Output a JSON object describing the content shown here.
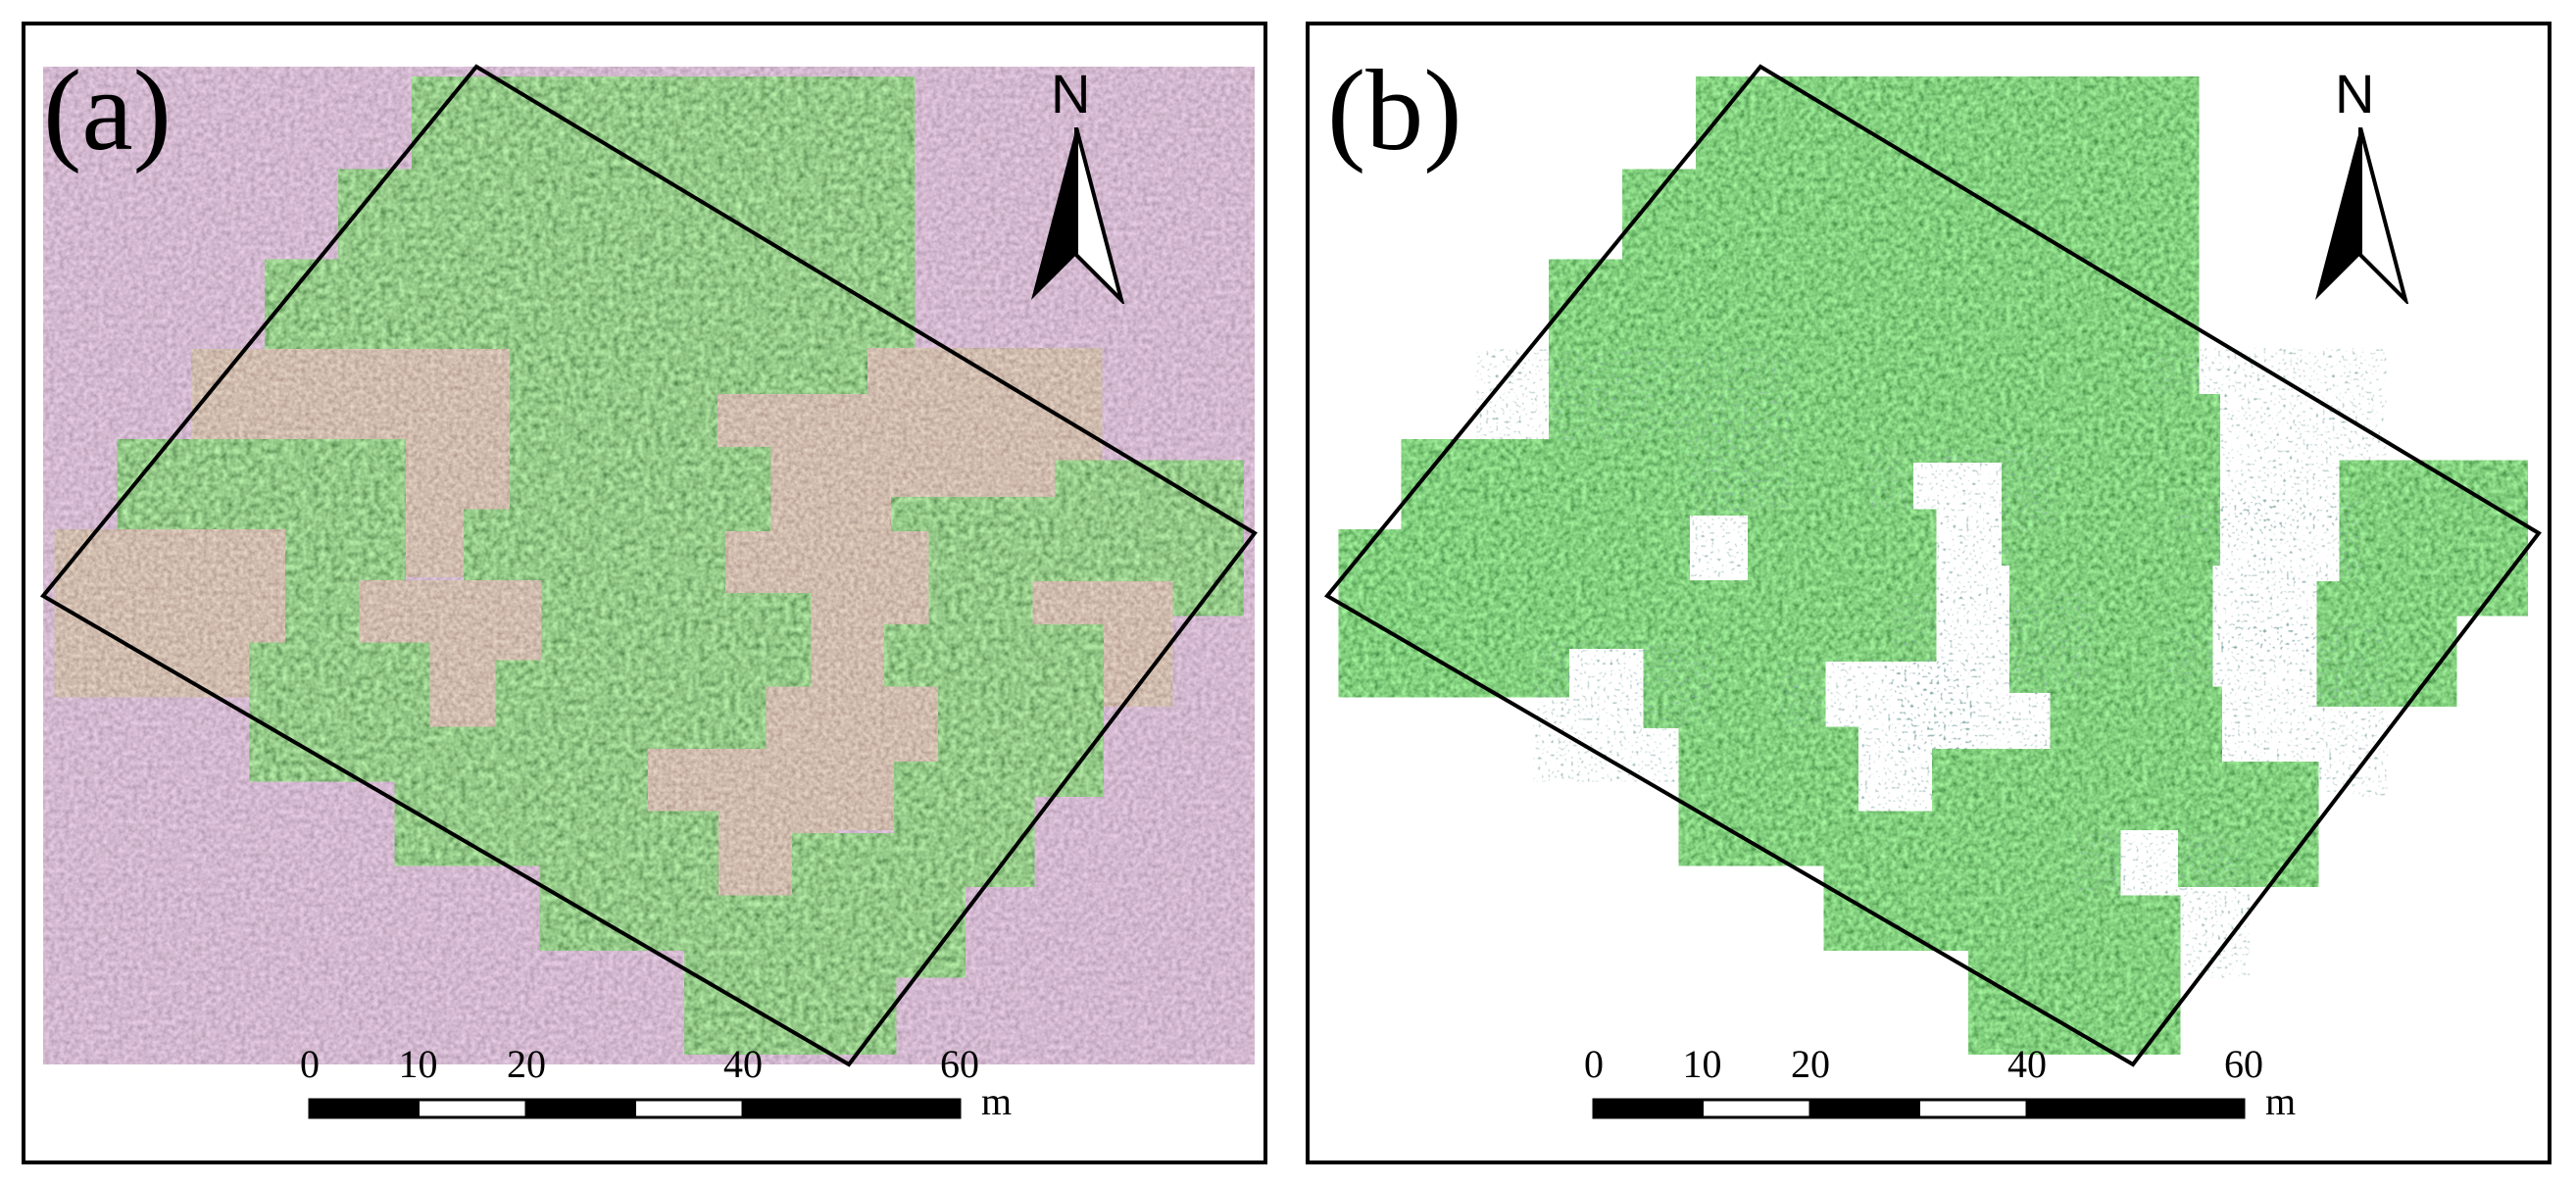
{
  "panels": [
    {
      "label": "(a)",
      "style": "orthomosaic"
    },
    {
      "label": "(b)",
      "style": "vegetation-only"
    }
  ],
  "north_arrow": {
    "label": "N",
    "icon": "north-arrow-icon"
  },
  "scale_bar": {
    "ticks": [
      "0",
      "10",
      "20",
      "40",
      "60"
    ],
    "tick_values": [
      0,
      10,
      20,
      40,
      60
    ],
    "segment_breaks": [
      0,
      10,
      20,
      30,
      40,
      60
    ],
    "unit": "m"
  },
  "colors": {
    "crop_green": "#3f7a35",
    "crop_dark": "#2c5a28",
    "soil_path": "#9a6e86",
    "bare_plot": "#9b7a68",
    "frame": "#000000"
  }
}
